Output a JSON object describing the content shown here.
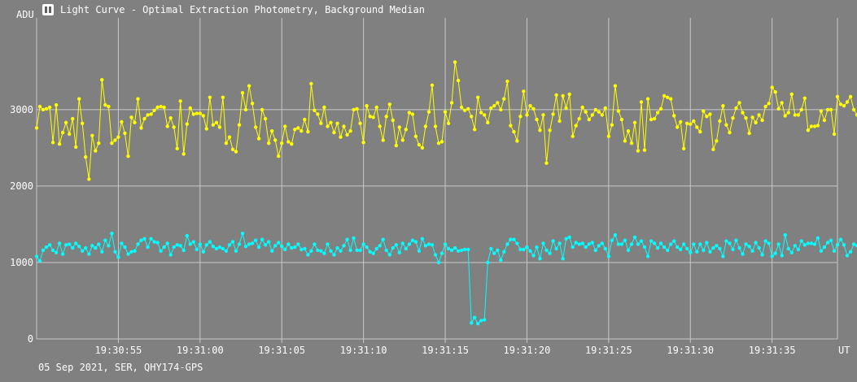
{
  "window": {
    "title": "Light Curve - Optimal Extraction Photometry, Background Median",
    "icon": "light-curve-app-icon"
  },
  "footer": {
    "info": "05 Sep 2021, SER, QHY174-GPS"
  },
  "colors": {
    "background": "#808080",
    "grid": "#c8c8c8",
    "series_yellow": "#ffff00",
    "series_cyan": "#00ffff"
  },
  "chart_data": {
    "type": "line",
    "title": "Light Curve - Optimal Extraction Photometry, Background Median",
    "ylabel": "ADU",
    "xlabel": "UT",
    "x_unit": "UT time",
    "xlim": [
      "19:30:50.0",
      "19:31:39.0"
    ],
    "ylim": [
      0,
      4200
    ],
    "yticks": [
      0,
      1000,
      2000,
      3000
    ],
    "xticks": [
      "19:30:55",
      "19:31:00",
      "19:31:05",
      "19:31:10",
      "19:31:15",
      "19:31:20",
      "19:31:25",
      "19:31:30",
      "19:31:35"
    ],
    "grid": true,
    "sample_interval_s": 0.2,
    "series": [
      {
        "color": "#ffff00",
        "x_start": "19:30:50.0",
        "values": [
          2760,
          3040,
          3000,
          3010,
          3030,
          2570,
          3060,
          2550,
          2700,
          2830,
          2680,
          2880,
          2510,
          3140,
          2820,
          2380,
          2090,
          2660,
          2460,
          2560,
          3390,
          3060,
          3040,
          2560,
          2600,
          2640,
          2840,
          2690,
          2390,
          2900,
          2830,
          3140,
          2760,
          2880,
          2930,
          2940,
          2990,
          3030,
          3040,
          3030,
          2780,
          2890,
          2770,
          2490,
          3110,
          2420,
          2810,
          3020,
          2940,
          2950,
          2950,
          2920,
          2750,
          3160,
          2800,
          2830,
          2770,
          3160,
          2560,
          2640,
          2480,
          2450,
          2800,
          3220,
          3000,
          3310,
          3080,
          2770,
          2620,
          3000,
          2880,
          2560,
          2720,
          2600,
          2390,
          2560,
          2780,
          2580,
          2550,
          2740,
          2760,
          2720,
          2870,
          2710,
          3340,
          2990,
          2940,
          2820,
          3030,
          2780,
          2830,
          2700,
          2820,
          2640,
          2780,
          2670,
          2720,
          3000,
          3010,
          2820,
          2570,
          3050,
          2910,
          2900,
          3030,
          2780,
          2600,
          2910,
          3070,
          2860,
          2530,
          2770,
          2600,
          2740,
          2960,
          2940,
          2650,
          2540,
          2500,
          2780,
          2970,
          3320,
          2780,
          2560,
          2580,
          2970,
          2820,
          3090,
          3620,
          3380,
          3030,
          2990,
          3010,
          2910,
          2740,
          3160,
          2960,
          2930,
          2830,
          3020,
          3050,
          3090,
          3000,
          3140,
          3370,
          2790,
          2710,
          2590,
          2910,
          3240,
          2930,
          3050,
          3010,
          2870,
          2730,
          2930,
          2300,
          2730,
          2940,
          3190,
          2850,
          3180,
          3020,
          3200,
          2650,
          2790,
          2880,
          3030,
          2970,
          2870,
          2930,
          3000,
          2970,
          2930,
          3020,
          2650,
          2800,
          3310,
          2980,
          2870,
          2590,
          2720,
          2560,
          2830,
          2460,
          3100,
          2470,
          3140,
          2870,
          2880,
          2960,
          3010,
          3180,
          3160,
          3140,
          2920,
          2770,
          2840,
          2490,
          2820,
          2810,
          2850,
          2770,
          2710,
          2980,
          2910,
          2940,
          2480,
          2590,
          2850,
          3050,
          2800,
          2700,
          2890,
          3020,
          3090,
          2960,
          2890,
          2690,
          2900,
          2830,
          2930,
          2860,
          3040,
          3080,
          3290,
          3230,
          3010,
          3090,
          2920,
          2960,
          3200,
          2930,
          2930,
          3000,
          3150,
          2730,
          2780,
          2780,
          2790,
          2980,
          2860,
          3000,
          3000,
          2680,
          3170,
          3070,
          3050,
          3100,
          3170,
          3000,
          2930,
          2810,
          2870
        ]
      },
      {
        "color": "#00ffff",
        "x_start": "19:30:50.0",
        "values": [
          1080,
          1020,
          1160,
          1200,
          1230,
          1160,
          1130,
          1250,
          1110,
          1230,
          1240,
          1190,
          1250,
          1210,
          1150,
          1190,
          1110,
          1220,
          1190,
          1240,
          1140,
          1290,
          1220,
          1380,
          1140,
          1070,
          1250,
          1200,
          1110,
          1140,
          1150,
          1240,
          1290,
          1310,
          1200,
          1310,
          1270,
          1260,
          1150,
          1200,
          1250,
          1100,
          1200,
          1230,
          1220,
          1160,
          1350,
          1240,
          1270,
          1170,
          1240,
          1140,
          1230,
          1270,
          1210,
          1180,
          1200,
          1180,
          1150,
          1230,
          1270,
          1150,
          1240,
          1380,
          1210,
          1240,
          1250,
          1290,
          1200,
          1300,
          1230,
          1270,
          1150,
          1220,
          1260,
          1210,
          1170,
          1240,
          1190,
          1200,
          1240,
          1170,
          1180,
          1100,
          1150,
          1240,
          1160,
          1150,
          1120,
          1240,
          1150,
          1100,
          1190,
          1150,
          1220,
          1300,
          1160,
          1320,
          1160,
          1160,
          1240,
          1200,
          1140,
          1120,
          1180,
          1220,
          1300,
          1160,
          1100,
          1190,
          1230,
          1130,
          1250,
          1180,
          1240,
          1290,
          1270,
          1150,
          1310,
          1220,
          1240,
          1230,
          1100,
          1000,
          1120,
          1240,
          1180,
          1160,
          1190,
          1150,
          1160,
          1170,
          1170,
          210,
          280,
          200,
          240,
          250,
          1000,
          1180,
          1120,
          1160,
          1030,
          1140,
          1240,
          1300,
          1300,
          1250,
          1170,
          1170,
          1200,
          1150,
          1090,
          1200,
          1050,
          1250,
          1160,
          1120,
          1280,
          1180,
          1250,
          1050,
          1310,
          1330,
          1200,
          1260,
          1240,
          1250,
          1200,
          1240,
          1260,
          1160,
          1220,
          1250,
          1180,
          1080,
          1290,
          1360,
          1240,
          1240,
          1290,
          1160,
          1240,
          1330,
          1240,
          1280,
          1200,
          1080,
          1280,
          1250,
          1190,
          1250,
          1200,
          1160,
          1240,
          1280,
          1200,
          1170,
          1240,
          1180,
          1130,
          1240,
          1140,
          1240,
          1160,
          1260,
          1140,
          1190,
          1220,
          1180,
          1080,
          1280,
          1250,
          1170,
          1290,
          1190,
          1110,
          1240,
          1210,
          1150,
          1260,
          1190,
          1100,
          1280,
          1250,
          1080,
          1120,
          1240,
          1090,
          1360,
          1180,
          1130,
          1220,
          1170,
          1280,
          1230,
          1250,
          1250,
          1240,
          1320,
          1150,
          1200,
          1260,
          1290,
          1150,
          1230,
          1300,
          1230,
          1090,
          1140,
          1240,
          1220,
          1180,
          1230,
          1290,
          1220,
          1260,
          1190,
          1180,
          1250,
          1200,
          1060,
          1200,
          1230
        ]
      }
    ]
  }
}
